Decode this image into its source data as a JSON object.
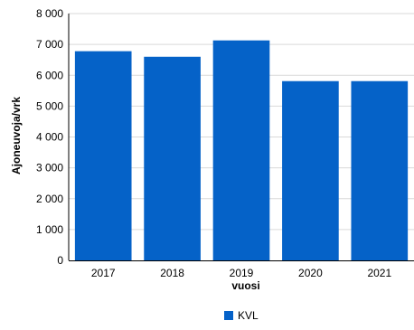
{
  "chart_data": {
    "type": "bar",
    "categories": [
      "2017",
      "2018",
      "2019",
      "2020",
      "2021"
    ],
    "series": [
      {
        "name": "KVL",
        "values": [
          6780,
          6600,
          7130,
          5810,
          5810
        ],
        "color": "#0562c8"
      }
    ],
    "xlabel": "vuosi",
    "ylabel": "Ajoneuvoja/vrk",
    "ylim": [
      0,
      8000
    ],
    "yticks": [
      0,
      1000,
      2000,
      3000,
      4000,
      5000,
      6000,
      7000,
      8000
    ],
    "ytick_labels": [
      "0",
      "1 000",
      "2 000",
      "3 000",
      "4 000",
      "5 000",
      "6 000",
      "7 000",
      "8 000"
    ],
    "grid": true,
    "legend": "bottom-center"
  }
}
